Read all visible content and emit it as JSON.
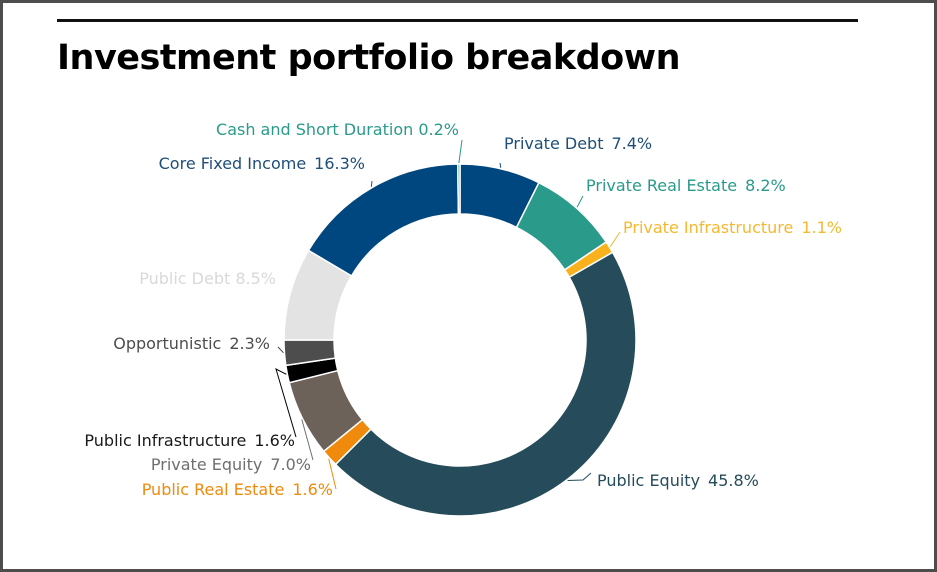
{
  "chart_data": {
    "type": "pie",
    "title": "Investment portfolio breakdown",
    "donut": true,
    "slices": [
      {
        "name": "Private Debt",
        "value": 7.4,
        "label_text": "7.4%",
        "color": "#00477f"
      },
      {
        "name": "Private Real Estate",
        "value": 8.2,
        "label_text": "8.2%",
        "color": "#2a9a8a"
      },
      {
        "name": "Private Infrastructure",
        "value": 1.1,
        "label_text": "1.1%",
        "color": "#f9b21e"
      },
      {
        "name": "Public Equity",
        "value": 45.8,
        "label_text": "45.8%",
        "color": "#264b5a"
      },
      {
        "name": "Public Real Estate",
        "value": 1.6,
        "label_text": "1.6%",
        "color": "#ef8a0c"
      },
      {
        "name": "Private Equity",
        "value": 7.0,
        "label_text": "7.0%",
        "color": "#6d625a"
      },
      {
        "name": "Public Infrastructure",
        "value": 1.6,
        "label_text": "1.6%",
        "color": "#000000"
      },
      {
        "name": "Opportunistic",
        "value": 2.3,
        "label_text": "2.3%",
        "color": "#4d4d4d"
      },
      {
        "name": "Public Debt",
        "value": 8.5,
        "label_text": "8.5%",
        "color": "#e3e3e3"
      },
      {
        "name": "Core Fixed Income",
        "value": 16.3,
        "label_text": "16.3%",
        "color": "#00477f"
      },
      {
        "name": "Cash and Short Duration",
        "value": 0.2,
        "label_text": "0.2%",
        "color": "#2a9a8a"
      }
    ],
    "label_colors": {
      "Private Debt": "#1f4e79",
      "Private Real Estate": "#2a9a8a",
      "Private Infrastructure": "#f5b82e",
      "Public Equity": "#264b5a",
      "Public Real Estate": "#ef8a0c",
      "Private Equity": "#6f6f6f",
      "Public Infrastructure": "#1a1a1a",
      "Opportunistic": "#4d4d4d",
      "Public Debt": "#d9d9d9",
      "Core Fixed Income": "#1f4e79",
      "Cash and Short Duration": "#2a9a8a"
    }
  }
}
